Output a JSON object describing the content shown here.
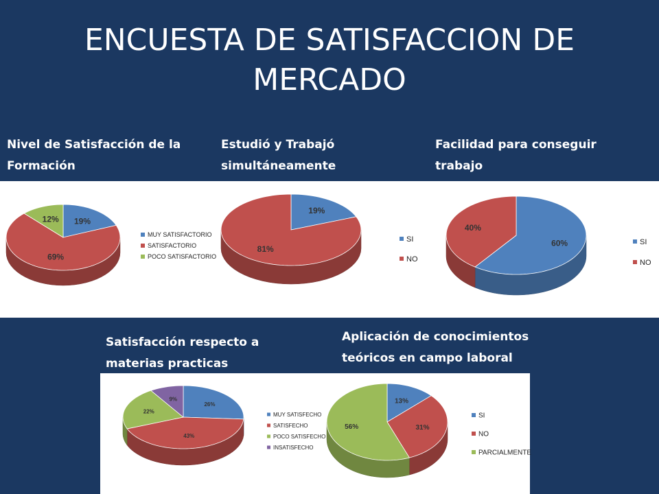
{
  "slide": {
    "title_line1": "ENCUESTA DE SATISFACCION DE",
    "title_line2": "MERCADO"
  },
  "chart_data": [
    {
      "type": "pie",
      "title_line1": "Nivel de Satisfacción de la",
      "title_line2": "Formación",
      "categories": [
        "MUY SATISFACTORIO",
        "SATISFACTORIO",
        "POCO SATISFACTORIO"
      ],
      "values": [
        19,
        69,
        12
      ],
      "labels": [
        "19%",
        "69%",
        "12%"
      ],
      "colors": [
        "#4f81bd",
        "#c0504d",
        "#9bbb59"
      ],
      "legend": "right"
    },
    {
      "type": "pie",
      "title_line1": "Estudió y Trabajó",
      "title_line2": "simultáneamente",
      "categories": [
        "SI",
        "NO"
      ],
      "values": [
        19,
        81
      ],
      "labels": [
        "19%",
        "81%"
      ],
      "colors": [
        "#4f81bd",
        "#c0504d"
      ],
      "legend": "right"
    },
    {
      "type": "pie",
      "title_line1": "Facilidad para conseguir",
      "title_line2": "trabajo",
      "categories": [
        "SI",
        "NO"
      ],
      "values": [
        60,
        40
      ],
      "labels": [
        "60%",
        "40%"
      ],
      "colors": [
        "#4f81bd",
        "#c0504d"
      ],
      "legend": "right"
    },
    {
      "type": "pie",
      "title_line1": "Satisfacción respecto a",
      "title_line2": "materias practicas",
      "categories": [
        "MUY SATISFECHO",
        "SATISFECHO",
        "POCO SATISFECHO",
        "INSATISFECHO"
      ],
      "values": [
        26,
        43,
        22,
        9
      ],
      "labels": [
        "26%",
        "43%",
        "22%",
        "9%"
      ],
      "colors": [
        "#4f81bd",
        "#c0504d",
        "#9bbb59",
        "#8064a2"
      ],
      "legend": "right"
    },
    {
      "type": "pie",
      "title_line1": "Aplicación de conocimientos",
      "title_line2": "teóricos en campo laboral",
      "categories": [
        "SI",
        "NO",
        "PARCIALMENTE"
      ],
      "values": [
        13,
        31,
        56
      ],
      "labels": [
        "13%",
        "31%",
        "56%"
      ],
      "colors": [
        "#4f81bd",
        "#c0504d",
        "#9bbb59"
      ],
      "legend": "right"
    }
  ]
}
